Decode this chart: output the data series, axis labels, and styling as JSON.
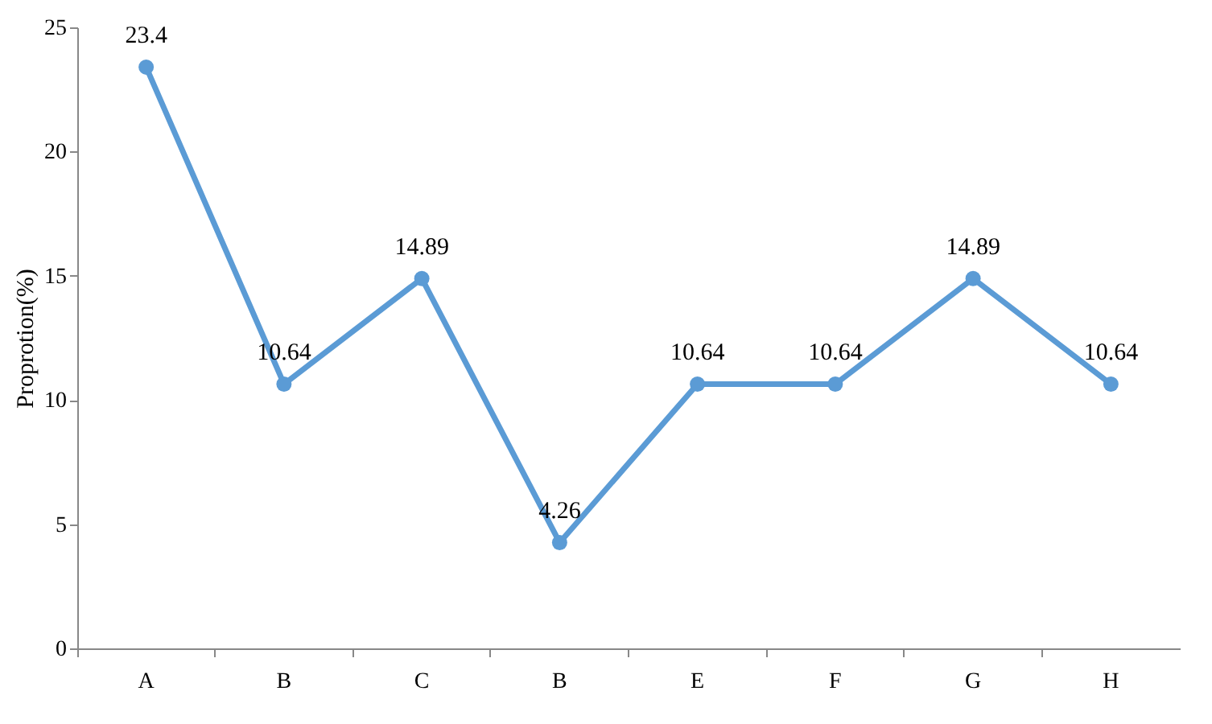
{
  "chart_data": {
    "type": "line",
    "ylabel": "Proprotion(%)",
    "categories": [
      "A",
      "B",
      "C",
      "B",
      "E",
      "F",
      "G",
      "H"
    ],
    "series": [
      {
        "color": "#5b9bd5",
        "values": [
          23.4,
          10.64,
          14.89,
          4.26,
          10.64,
          10.64,
          14.89,
          10.64
        ]
      }
    ],
    "ylim": [
      0,
      25
    ],
    "yticks": [
      0,
      5,
      10,
      15,
      20,
      25
    ],
    "grid": false,
    "marker": "circle",
    "line_style": "solid",
    "data_labels": true
  }
}
